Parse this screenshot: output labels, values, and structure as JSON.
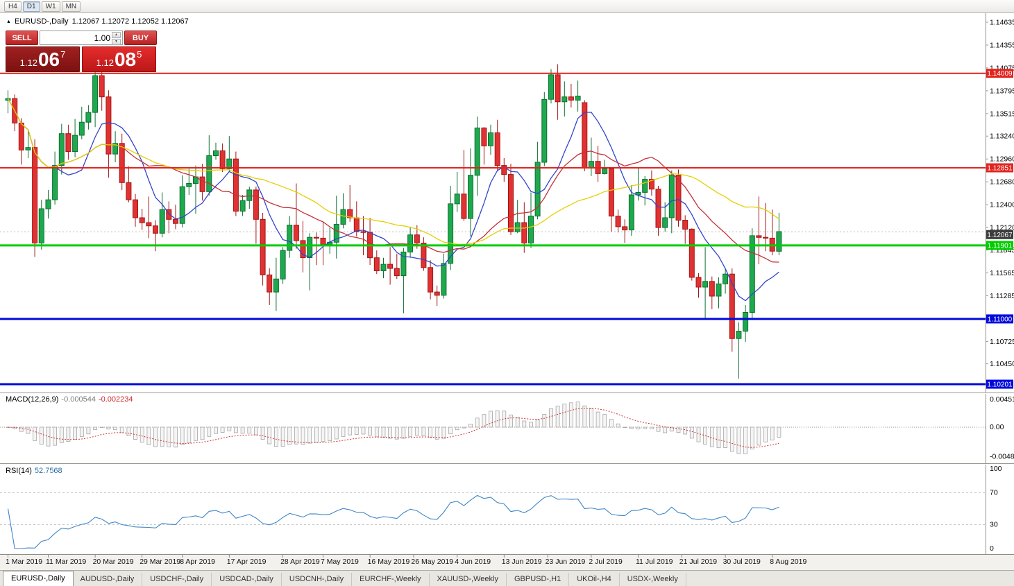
{
  "toolbar": {
    "buttons": [
      "H4",
      "D1",
      "W1",
      "MN"
    ],
    "active": "D1"
  },
  "chart_header": {
    "marker": "▲",
    "title": "EURUSD-,Daily",
    "ohlc": "1.12067 1.12072 1.12052 1.12067"
  },
  "trade_panel": {
    "sell_label": "SELL",
    "buy_label": "BUY",
    "volume": "1.00",
    "sell_price": {
      "base": "1.12",
      "big": "06",
      "sup": "7"
    },
    "buy_price": {
      "base": "1.12",
      "big": "08",
      "sup": "5"
    }
  },
  "indicators": {
    "macd_name": "MACD(12,26,9)",
    "macd_v1": "-0.000544",
    "macd_v2": "-0.002234",
    "rsi_name": "RSI(14)",
    "rsi_value": "52.7568"
  },
  "scales": {
    "price_ticks": [
      "1.14635",
      "1.14355",
      "1.14075",
      "1.13795",
      "1.13515",
      "1.13240",
      "1.12960",
      "1.12680",
      "1.12400",
      "1.12120",
      "1.11845",
      "1.11565",
      "1.11285",
      "1.10725",
      "1.10450"
    ],
    "macd": [
      {
        "label": "0.004517",
        "value": 0.004517
      },
      {
        "label": "0.00",
        "value": 0
      },
      {
        "label": "-0.004800",
        "value": -0.0048
      }
    ],
    "rsi": [
      {
        "label": "100",
        "value": 100
      },
      {
        "label": "70",
        "value": 70
      },
      {
        "label": "30",
        "value": 30
      },
      {
        "label": "0",
        "value": 0
      }
    ],
    "rsi_levels": [
      70,
      30
    ]
  },
  "hlines": [
    {
      "price": 1.14009,
      "label": "1.14009",
      "color": "#e2231e",
      "width": 2
    },
    {
      "price": 1.12851,
      "label": "1.12851",
      "color": "#e2231e",
      "width": 2
    },
    {
      "price": 1.11901,
      "label": "1.11901",
      "color": "#00cc00",
      "width": 3
    },
    {
      "price": 1.11,
      "label": "1.11000",
      "color": "#0008dd",
      "width": 3
    },
    {
      "price": 1.10201,
      "label": "1.10201",
      "color": "#0008dd",
      "width": 3
    }
  ],
  "current_price": {
    "label": "1.12067",
    "value": 1.12067,
    "badge_color": "#3c3c3c"
  },
  "date_labels": [
    {
      "label": "1 Mar 2019",
      "bar": 0
    },
    {
      "label": "11 Mar 2019",
      "bar": 6
    },
    {
      "label": "20 Mar 2019",
      "bar": 13
    },
    {
      "label": "29 Mar 2019",
      "bar": 20
    },
    {
      "label": "8 Apr 2019",
      "bar": 26
    },
    {
      "label": "17 Apr 2019",
      "bar": 33
    },
    {
      "label": "28 Apr 2019",
      "bar": 41
    },
    {
      "label": "7 May 2019",
      "bar": 47
    },
    {
      "label": "16 May 2019",
      "bar": 54
    },
    {
      "label": "26 May 2019",
      "bar": 60.5
    },
    {
      "label": "4 Jun 2019",
      "bar": 67
    },
    {
      "label": "13 Jun 2019",
      "bar": 74
    },
    {
      "label": "23 Jun 2019",
      "bar": 80.5
    },
    {
      "label": "2 Jul 2019",
      "bar": 87
    },
    {
      "label": "11 Jul 2019",
      "bar": 94
    },
    {
      "label": "21 Jul 2019",
      "bar": 100.5
    },
    {
      "label": "30 Jul 2019",
      "bar": 107
    },
    {
      "label": "8 Aug 2019",
      "bar": 114
    }
  ],
  "tabs": {
    "active": 0,
    "items": [
      "EURUSD-,Daily",
      "AUDUSD-,Daily",
      "USDCHF-,Daily",
      "USDCAD-,Daily",
      "USDCNH-,Daily",
      "EURCHF-,Weekly",
      "XAUUSD-,Weekly",
      "GBPUSD-,H1",
      "UKOil-,H4",
      "USDX-,Weekly"
    ]
  },
  "colors": {
    "bull": "#1fa94f",
    "bull_border": "#0c6f30",
    "bear": "#e03232",
    "bear_border": "#a31515",
    "ma_fast": "#3344cc",
    "ma_mid": "#c43038",
    "ma_slow": "#e3d000",
    "macd_hist_fill": "#f4f4f4",
    "macd_hist_stroke": "#a6a6a6",
    "macd_signal": "#d23434",
    "rsi_line": "#3e86c6",
    "level_dashed": "#c8c8c8",
    "current_price_line": "#b8b8b8"
  },
  "chart_data": {
    "type": "candlestick",
    "symbol": "EURUSD-",
    "timeframe": "Daily",
    "title": "EURUSD-,Daily",
    "moving_averages": [
      {
        "period": 8
      },
      {
        "period": 18
      },
      {
        "period": 34
      }
    ],
    "macd_params": {
      "fast": 12,
      "slow": 26,
      "signal": 9
    },
    "rsi_period": 14,
    "ohlc": [
      [
        1.1368,
        1.138,
        1.1352,
        1.137
      ],
      [
        1.137,
        1.1375,
        1.133,
        1.134
      ],
      [
        1.134,
        1.1346,
        1.1289,
        1.1307
      ],
      [
        1.1307,
        1.133,
        1.1297,
        1.131
      ],
      [
        1.131,
        1.132,
        1.1176,
        1.1193
      ],
      [
        1.1193,
        1.1246,
        1.1185,
        1.1235
      ],
      [
        1.1235,
        1.1258,
        1.1223,
        1.1246
      ],
      [
        1.1246,
        1.1305,
        1.124,
        1.1288
      ],
      [
        1.1288,
        1.1339,
        1.1277,
        1.1327
      ],
      [
        1.1327,
        1.1338,
        1.1295,
        1.1305
      ],
      [
        1.1305,
        1.1345,
        1.1298,
        1.1325
      ],
      [
        1.1325,
        1.136,
        1.132,
        1.1341
      ],
      [
        1.1341,
        1.1362,
        1.1332,
        1.1353
      ],
      [
        1.1353,
        1.1405,
        1.1335,
        1.1398
      ],
      [
        1.1398,
        1.1409,
        1.1355,
        1.1372
      ],
      [
        1.1372,
        1.138,
        1.1273,
        1.1302
      ],
      [
        1.1302,
        1.133,
        1.1292,
        1.1315
      ],
      [
        1.1315,
        1.1327,
        1.1258,
        1.1267
      ],
      [
        1.1267,
        1.1287,
        1.1243,
        1.1246
      ],
      [
        1.1246,
        1.1253,
        1.1213,
        1.1224
      ],
      [
        1.1224,
        1.1235,
        1.1209,
        1.1218
      ],
      [
        1.1218,
        1.125,
        1.1199,
        1.1214
      ],
      [
        1.1214,
        1.1221,
        1.1183,
        1.1205
      ],
      [
        1.1205,
        1.1255,
        1.12,
        1.1234
      ],
      [
        1.1234,
        1.1244,
        1.1205,
        1.1222
      ],
      [
        1.1222,
        1.124,
        1.121,
        1.1217
      ],
      [
        1.1217,
        1.1276,
        1.1212,
        1.1262
      ],
      [
        1.1262,
        1.1284,
        1.1252,
        1.1266
      ],
      [
        1.1266,
        1.1288,
        1.1229,
        1.1274
      ],
      [
        1.1274,
        1.129,
        1.1245,
        1.1256
      ],
      [
        1.1256,
        1.1325,
        1.1251,
        1.13
      ],
      [
        1.13,
        1.1316,
        1.1295,
        1.1306
      ],
      [
        1.1306,
        1.1315,
        1.128,
        1.1284
      ],
      [
        1.1284,
        1.1324,
        1.128,
        1.1296
      ],
      [
        1.1296,
        1.1305,
        1.1226,
        1.1232
      ],
      [
        1.1232,
        1.1252,
        1.1226,
        1.1245
      ],
      [
        1.1245,
        1.1262,
        1.1235,
        1.1258
      ],
      [
        1.1258,
        1.1262,
        1.1192,
        1.1222
      ],
      [
        1.1222,
        1.123,
        1.1141,
        1.1154
      ],
      [
        1.1154,
        1.1162,
        1.1117,
        1.1133
      ],
      [
        1.1133,
        1.1175,
        1.111,
        1.1149
      ],
      [
        1.1149,
        1.1188,
        1.1143,
        1.1184
      ],
      [
        1.1184,
        1.1226,
        1.1175,
        1.1215
      ],
      [
        1.1215,
        1.1266,
        1.1186,
        1.1196
      ],
      [
        1.1196,
        1.122,
        1.1157,
        1.1175
      ],
      [
        1.1175,
        1.1205,
        1.1135,
        1.12
      ],
      [
        1.12,
        1.1206,
        1.1166,
        1.1199
      ],
      [
        1.1199,
        1.1218,
        1.1166,
        1.1191
      ],
      [
        1.1191,
        1.1212,
        1.118,
        1.1194
      ],
      [
        1.1194,
        1.1251,
        1.1174,
        1.1216
      ],
      [
        1.1216,
        1.1254,
        1.1211,
        1.1234
      ],
      [
        1.1234,
        1.1264,
        1.1219,
        1.1224
      ],
      [
        1.1224,
        1.1244,
        1.1201,
        1.1207
      ],
      [
        1.1207,
        1.1226,
        1.1178,
        1.1206
      ],
      [
        1.1206,
        1.1224,
        1.1166,
        1.1175
      ],
      [
        1.1175,
        1.1184,
        1.1155,
        1.1159
      ],
      [
        1.1159,
        1.1175,
        1.115,
        1.1167
      ],
      [
        1.1167,
        1.1188,
        1.1142,
        1.1162
      ],
      [
        1.1162,
        1.118,
        1.1149,
        1.1153
      ],
      [
        1.1153,
        1.1187,
        1.1107,
        1.1182
      ],
      [
        1.1182,
        1.1213,
        1.1175,
        1.1203
      ],
      [
        1.1203,
        1.1215,
        1.1186,
        1.1193
      ],
      [
        1.1193,
        1.12,
        1.1159,
        1.1163
      ],
      [
        1.1163,
        1.1172,
        1.1124,
        1.1133
      ],
      [
        1.1133,
        1.1141,
        1.1116,
        1.1129
      ],
      [
        1.1129,
        1.118,
        1.1125,
        1.1168
      ],
      [
        1.1168,
        1.1263,
        1.116,
        1.1241
      ],
      [
        1.1241,
        1.128,
        1.1231,
        1.1253
      ],
      [
        1.1253,
        1.1307,
        1.122,
        1.1223
      ],
      [
        1.1223,
        1.1309,
        1.1201,
        1.1276
      ],
      [
        1.1276,
        1.1348,
        1.1251,
        1.1334
      ],
      [
        1.1334,
        1.1335,
        1.1289,
        1.1312
      ],
      [
        1.1312,
        1.1338,
        1.1301,
        1.1328
      ],
      [
        1.1328,
        1.1344,
        1.1282,
        1.1288
      ],
      [
        1.1288,
        1.1297,
        1.1268,
        1.1277
      ],
      [
        1.1277,
        1.129,
        1.1203,
        1.1207
      ],
      [
        1.1207,
        1.1246,
        1.1205,
        1.1218
      ],
      [
        1.1218,
        1.1243,
        1.1181,
        1.1193
      ],
      [
        1.1193,
        1.1255,
        1.1187,
        1.1226
      ],
      [
        1.1226,
        1.1317,
        1.1222,
        1.1292
      ],
      [
        1.1292,
        1.1378,
        1.1287,
        1.1369
      ],
      [
        1.1369,
        1.1406,
        1.1364,
        1.1399
      ],
      [
        1.1399,
        1.1412,
        1.1344,
        1.1366
      ],
      [
        1.1366,
        1.1391,
        1.1348,
        1.1372
      ],
      [
        1.1372,
        1.1388,
        1.1359,
        1.1368
      ],
      [
        1.1368,
        1.1392,
        1.1354,
        1.1373
      ],
      [
        1.1365,
        1.1368,
        1.1281,
        1.1285
      ],
      [
        1.1285,
        1.1322,
        1.1275,
        1.1293
      ],
      [
        1.1293,
        1.1312,
        1.1268,
        1.1278
      ],
      [
        1.1278,
        1.1295,
        1.1277,
        1.1284
      ],
      [
        1.1284,
        1.1286,
        1.1207,
        1.1226
      ],
      [
        1.1226,
        1.1234,
        1.1206,
        1.1213
      ],
      [
        1.1213,
        1.1222,
        1.1193,
        1.1209
      ],
      [
        1.1209,
        1.1264,
        1.1202,
        1.1252
      ],
      [
        1.1252,
        1.1285,
        1.1245,
        1.1255
      ],
      [
        1.1255,
        1.1275,
        1.1239,
        1.1271
      ],
      [
        1.1271,
        1.1282,
        1.1251,
        1.1259
      ],
      [
        1.1259,
        1.1263,
        1.1202,
        1.1212
      ],
      [
        1.1212,
        1.1243,
        1.1207,
        1.1224
      ],
      [
        1.1224,
        1.1282,
        1.1205,
        1.1276
      ],
      [
        1.1276,
        1.1283,
        1.1213,
        1.1221
      ],
      [
        1.1221,
        1.1227,
        1.1192,
        1.121
      ],
      [
        1.121,
        1.1211,
        1.1147,
        1.1151
      ],
      [
        1.1151,
        1.1156,
        1.1126,
        1.1139
      ],
      [
        1.1139,
        1.1188,
        1.1101,
        1.1146
      ],
      [
        1.1146,
        1.1152,
        1.1112,
        1.1128
      ],
      [
        1.1128,
        1.1151,
        1.1113,
        1.1143
      ],
      [
        1.1143,
        1.1162,
        1.1131,
        1.1155
      ],
      [
        1.1155,
        1.1162,
        1.106,
        1.1076
      ],
      [
        1.1076,
        1.1096,
        1.1027,
        1.1085
      ],
      [
        1.1085,
        1.1117,
        1.1072,
        1.1108
      ],
      [
        1.1108,
        1.1211,
        1.1101,
        1.1202
      ],
      [
        1.1202,
        1.125,
        1.1167,
        1.12
      ],
      [
        1.12,
        1.1242,
        1.1183,
        1.1199
      ],
      [
        1.1199,
        1.1234,
        1.1178,
        1.1183
      ],
      [
        1.1183,
        1.123,
        1.1178,
        1.1207
      ]
    ]
  }
}
